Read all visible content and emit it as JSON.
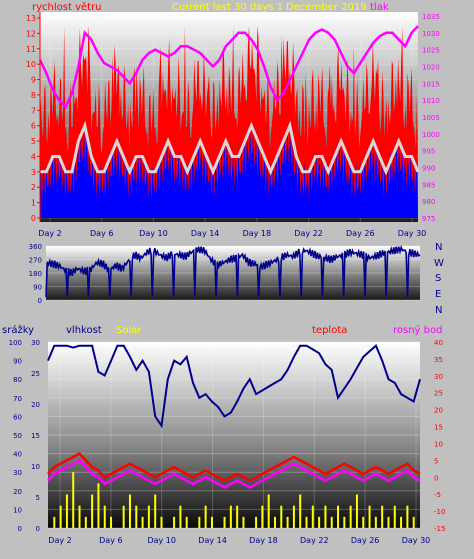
{
  "header": {
    "wind_label": "rychlost větru",
    "title": "Current last 30 days 1 December 2019",
    "pressure_label": "tlak"
  },
  "colors": {
    "panel_bg": "#c0c0c0",
    "wind_avg": "#0000ff",
    "wind_gust": "#ff0000",
    "wind_mid": "#d8d8d8",
    "pressure": "#ff00ff",
    "direction": "#00008b",
    "humidity": "#00008b",
    "temperature": "#ff0000",
    "dew_point": "#ff00ff",
    "solar": "#ffff00",
    "rain": "#00008b",
    "left_axis_text": "#ff0000",
    "humidity_axis_text": "#00008b",
    "right_axis_text": "#ff0000"
  },
  "lower_header": {
    "rain_label": "srážky",
    "humidity_label": "vlhkost",
    "solar_label": "Solar",
    "temp_label": "teplota",
    "dew_label": "rosný bod"
  },
  "direction_labels": [
    "N",
    "W",
    "S",
    "E",
    "N"
  ],
  "chart_data": [
    {
      "type": "line",
      "name": "wind-pressure",
      "series": [
        {
          "name": "rychlost větru",
          "values": [
            3,
            3,
            4,
            4,
            3,
            3,
            5,
            6,
            4,
            3,
            3,
            4,
            5,
            4,
            3,
            4,
            4,
            3,
            3,
            4,
            5,
            4,
            4,
            3,
            4,
            5,
            4,
            3,
            4,
            5,
            4,
            4,
            5,
            6,
            5,
            4,
            3,
            4,
            5,
            6,
            4,
            3,
            3,
            4,
            4,
            3,
            4,
            5,
            4,
            3,
            3,
            4,
            5,
            4,
            3,
            4,
            5,
            4,
            4,
            3
          ]
        },
        {
          "name": "tlak",
          "values": [
            1022,
            1018,
            1013,
            1010,
            1008,
            1012,
            1020,
            1030,
            1028,
            1024,
            1021,
            1020,
            1019,
            1017,
            1015,
            1018,
            1022,
            1024,
            1025,
            1024,
            1023,
            1024,
            1026,
            1026,
            1025,
            1024,
            1022,
            1020,
            1022,
            1026,
            1028,
            1030,
            1030,
            1028,
            1025,
            1020,
            1014,
            1010,
            1012,
            1016,
            1020,
            1024,
            1028,
            1030,
            1031,
            1030,
            1028,
            1024,
            1020,
            1018,
            1021,
            1024,
            1027,
            1029,
            1030,
            1030,
            1028,
            1026,
            1030,
            1032
          ]
        }
      ],
      "x_ticks": [
        "Day 2",
        "Day 6",
        "Day 10",
        "Day 14",
        "Day 18",
        "Day 22",
        "Day 26",
        "Day 30"
      ],
      "left_ticks": [
        "0",
        "1",
        "2",
        "3",
        "4",
        "5",
        "6",
        "7",
        "8",
        "9",
        "10",
        "11",
        "12",
        "13"
      ],
      "left_range": [
        0,
        13
      ],
      "right_ticks": [
        "975",
        "980",
        "985",
        "990",
        "995",
        "1000",
        "1005",
        "1010",
        "1015",
        "1020",
        "1025",
        "1030",
        "1035"
      ],
      "right_range": [
        975,
        1035
      ]
    },
    {
      "type": "line",
      "name": "wind-direction",
      "series": [
        {
          "name": "",
          "values": [
            250,
            240,
            230,
            200,
            180,
            210,
            190,
            200,
            250,
            240,
            200,
            230,
            210,
            260,
            300,
            280,
            320,
            330,
            300,
            280,
            310,
            300,
            290,
            320,
            340,
            330,
            270,
            230,
            250,
            270,
            280,
            300,
            250,
            240,
            220,
            240,
            260,
            280,
            300,
            290,
            320,
            330,
            310,
            290,
            280,
            270,
            290,
            300,
            320,
            310,
            300,
            280,
            290,
            310,
            320,
            330,
            340,
            320,
            310,
            300
          ]
        }
      ],
      "left_ticks": [
        "0",
        "90",
        "180",
        "270",
        "360"
      ],
      "y_range": [
        0,
        360
      ]
    },
    {
      "type": "line",
      "name": "humidity-temperature",
      "series": [
        {
          "name": "vlhkost",
          "values": [
            90,
            98,
            98,
            98,
            97,
            98,
            98,
            98,
            84,
            82,
            90,
            98,
            98,
            92,
            85,
            90,
            84,
            60,
            55,
            80,
            90,
            88,
            92,
            78,
            70,
            72,
            68,
            65,
            60,
            62,
            68,
            75,
            80,
            72,
            74,
            76,
            78,
            80,
            85,
            92,
            98,
            98,
            96,
            94,
            88,
            85,
            70,
            75,
            80,
            86,
            92,
            95,
            98,
            90,
            80,
            78,
            72,
            70,
            68,
            80
          ]
        },
        {
          "name": "Solar",
          "values": [
            0,
            1,
            2,
            3,
            5,
            2,
            1,
            3,
            4,
            2,
            1,
            0,
            2,
            3,
            2,
            1,
            2,
            3,
            1,
            0,
            1,
            2,
            1,
            0,
            1,
            2,
            1,
            0,
            1,
            2,
            2,
            1,
            0,
            1,
            2,
            3,
            1,
            2,
            1,
            2,
            3,
            1,
            2,
            1,
            2,
            1,
            2,
            1,
            2,
            3,
            1,
            2,
            1,
            2,
            1,
            2,
            1,
            2,
            1,
            0
          ]
        },
        {
          "name": "teplota",
          "values": [
            1,
            3,
            4,
            5,
            6,
            7,
            5,
            3,
            2,
            0,
            1,
            2,
            3,
            4,
            3,
            2,
            1,
            0,
            1,
            2,
            3,
            2,
            1,
            0,
            1,
            2,
            1,
            0,
            -1,
            0,
            1,
            0,
            -1,
            0,
            1,
            2,
            3,
            4,
            5,
            6,
            5,
            4,
            3,
            2,
            1,
            2,
            3,
            4,
            3,
            2,
            1,
            2,
            3,
            2,
            1,
            2,
            3,
            4,
            2,
            1
          ]
        },
        {
          "name": "rosný bod",
          "values": [
            -1,
            1,
            2,
            3,
            4,
            5,
            3,
            1,
            0,
            -2,
            -1,
            0,
            1,
            2,
            1,
            0,
            -1,
            -2,
            -1,
            0,
            1,
            0,
            -1,
            -2,
            -1,
            0,
            -1,
            -2,
            -3,
            -2,
            -1,
            -2,
            -3,
            -2,
            -1,
            0,
            1,
            2,
            3,
            4,
            3,
            2,
            1,
            0,
            -1,
            0,
            1,
            2,
            1,
            0,
            -1,
            0,
            1,
            0,
            -1,
            0,
            1,
            2,
            0,
            -1
          ]
        }
      ],
      "left_ticks": [
        "0",
        "10",
        "20",
        "30",
        "40",
        "50",
        "60",
        "70",
        "80",
        "90",
        "100"
      ],
      "left_range": [
        0,
        100
      ],
      "rain_ticks": [
        "0",
        "5",
        "10",
        "15",
        "20",
        "25",
        "30"
      ],
      "rain_range": [
        0,
        30
      ],
      "right_ticks": [
        "-15",
        "-10",
        "-5",
        "0",
        "5",
        "10",
        "15",
        "20",
        "25",
        "30",
        "35",
        "40"
      ],
      "right_range": [
        -15,
        40
      ],
      "x_ticks": [
        "Day 2",
        "Day 6",
        "Day 10",
        "Day 14",
        "Day 18",
        "Day 22",
        "Day 26",
        "Day 30"
      ]
    }
  ]
}
